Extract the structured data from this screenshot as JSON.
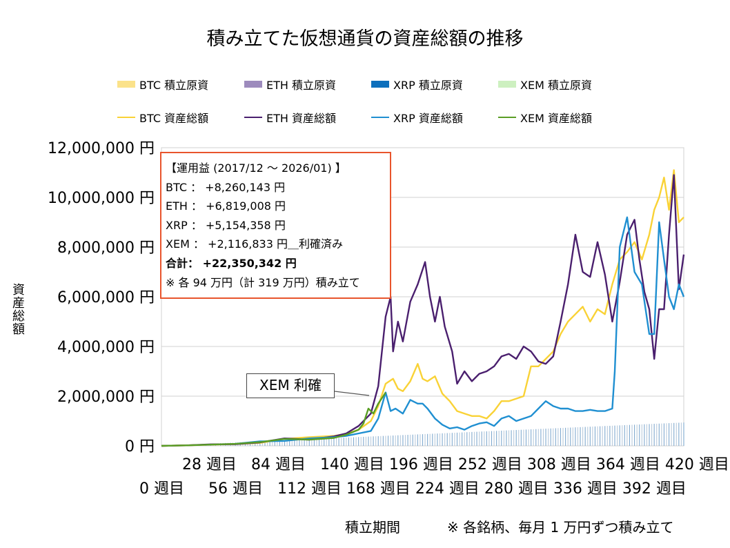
{
  "title": "積み立てた仮想通貨の資産総額の推移",
  "legend": {
    "row1": [
      {
        "label": "BTC  積立原資",
        "color": "#fbe28a"
      },
      {
        "label": "ETH  積立原資",
        "color": "#9d8bbd"
      },
      {
        "label": "XRP  積立原資",
        "color": "#0d6fbc"
      },
      {
        "label": "XEM  積立原資",
        "color": "#cdf0c0"
      }
    ],
    "row2": [
      {
        "label": "BTC  資産総額",
        "color": "#f9d236"
      },
      {
        "label": "ETH  資産総額",
        "color": "#4a1f6e"
      },
      {
        "label": "XRP  資産総額",
        "color": "#1f8fd1"
      },
      {
        "label": "XEM  資産総額",
        "color": "#5a9e25"
      }
    ]
  },
  "info_box": {
    "header": "【運用益 (2017/12 ～ 2026/01) 】",
    "btc": "BTC ： +8,260,143 円",
    "eth": "ETH ： +6,819,008 円",
    "xrp": "XRP ： +5,154,358 円",
    "xem": "XEM ： +2,116,833 円＿利確済み",
    "total": "合計： +22,350,342 円",
    "note": "※ 各 94 万円（計 319 万円）積み立て"
  },
  "callout": "XEM 利確",
  "axis": {
    "y_label": "資産総額",
    "x_label": "積立期間",
    "footnote": "※ 各銘柄、毎月 1 万円ずつ積み立て"
  },
  "chart_data": {
    "type": "line",
    "xlabel": "積立期間",
    "ylabel": "資産総額",
    "xlim": [
      0,
      424
    ],
    "ylim": [
      0,
      12000000
    ],
    "y_ticks": [
      {
        "value": 0,
        "label": "0 円"
      },
      {
        "value": 2000000,
        "label": "2,000,000 円"
      },
      {
        "value": 4000000,
        "label": "4,000,000 円"
      },
      {
        "value": 6000000,
        "label": "6,000,000 円"
      },
      {
        "value": 8000000,
        "label": "8,000,000 円"
      },
      {
        "value": 10000000,
        "label": "10,000,000 円"
      },
      {
        "value": 12000000,
        "label": "12,000,000 円"
      }
    ],
    "x_ticks_top": [
      {
        "value": 28,
        "label": "28 週目"
      },
      {
        "value": 84,
        "label": "84 週目"
      },
      {
        "value": 140,
        "label": "140 週目"
      },
      {
        "value": 196,
        "label": "196 週目"
      },
      {
        "value": 252,
        "label": "252 週目"
      },
      {
        "value": 308,
        "label": "308 週目"
      },
      {
        "value": 364,
        "label": "364 週目"
      },
      {
        "value": 420,
        "label": "420 週目"
      }
    ],
    "x_ticks_bottom": [
      {
        "value": 0,
        "label": "0 週目"
      },
      {
        "value": 56,
        "label": "56 週目"
      },
      {
        "value": 112,
        "label": "112 週目"
      },
      {
        "value": 168,
        "label": "168 週目"
      },
      {
        "value": 224,
        "label": "224 週目"
      },
      {
        "value": 280,
        "label": "280 週目"
      },
      {
        "value": 336,
        "label": "336 週目"
      },
      {
        "value": 392,
        "label": "392 週目"
      }
    ],
    "principal": {
      "name": "積立原資 (各銘柄)",
      "x": [
        0,
        424
      ],
      "y": [
        0,
        940000
      ]
    },
    "series": [
      {
        "name": "BTC 資産総額",
        "color": "#f9d236",
        "x": [
          0,
          20,
          40,
          60,
          80,
          100,
          120,
          140,
          150,
          160,
          170,
          176,
          182,
          188,
          192,
          196,
          202,
          208,
          212,
          216,
          222,
          228,
          234,
          240,
          246,
          252,
          258,
          264,
          270,
          276,
          282,
          288,
          294,
          300,
          306,
          312,
          318,
          324,
          330,
          336,
          342,
          348,
          354,
          360,
          366,
          372,
          378,
          384,
          390,
          396,
          400,
          404,
          408,
          412,
          416,
          420,
          424
        ],
        "y": [
          0,
          20000,
          50000,
          70000,
          120000,
          280000,
          350000,
          400000,
          480000,
          650000,
          1000000,
          1600000,
          2500000,
          2700000,
          2300000,
          2200000,
          2600000,
          3300000,
          2700000,
          2600000,
          2800000,
          2100000,
          1800000,
          1400000,
          1300000,
          1200000,
          1200000,
          1100000,
          1400000,
          1800000,
          1800000,
          1900000,
          2000000,
          3200000,
          3200000,
          3500000,
          3800000,
          4500000,
          5000000,
          5300000,
          5600000,
          5000000,
          5500000,
          5300000,
          6500000,
          7500000,
          7800000,
          8200000,
          7500000,
          8500000,
          9500000,
          10000000,
          10800000,
          9500000,
          11100000,
          9000000,
          9200000
        ]
      },
      {
        "name": "ETH 資産総額",
        "color": "#4a1f6e",
        "x": [
          0,
          20,
          40,
          60,
          80,
          100,
          120,
          140,
          150,
          160,
          170,
          176,
          182,
          186,
          188,
          192,
          196,
          202,
          208,
          214,
          218,
          222,
          226,
          230,
          236,
          240,
          246,
          252,
          258,
          264,
          270,
          276,
          282,
          288,
          294,
          300,
          306,
          312,
          318,
          324,
          330,
          336,
          342,
          348,
          354,
          360,
          366,
          372,
          378,
          384,
          388,
          392,
          396,
          400,
          404,
          408,
          412,
          416,
          420,
          424
        ],
        "y": [
          0,
          20000,
          60000,
          70000,
          140000,
          300000,
          250000,
          380000,
          500000,
          800000,
          1300000,
          2400000,
          5200000,
          6000000,
          3800000,
          5000000,
          4200000,
          5800000,
          6500000,
          7400000,
          6000000,
          5000000,
          6000000,
          4800000,
          3800000,
          2500000,
          3000000,
          2600000,
          2900000,
          3000000,
          3200000,
          3600000,
          3700000,
          3500000,
          4000000,
          3800000,
          3400000,
          3300000,
          3600000,
          5000000,
          6500000,
          8500000,
          7000000,
          6800000,
          8200000,
          6900000,
          5000000,
          6600000,
          8500000,
          9100000,
          7500000,
          6200000,
          5500000,
          3500000,
          5500000,
          5500000,
          8500000,
          10900000,
          6300000,
          7700000
        ]
      },
      {
        "name": "XRP 資産総額",
        "color": "#1f8fd1",
        "x": [
          60,
          80,
          100,
          120,
          140,
          150,
          160,
          170,
          176,
          182,
          186,
          190,
          196,
          202,
          208,
          212,
          216,
          222,
          228,
          234,
          240,
          246,
          252,
          258,
          264,
          270,
          276,
          282,
          288,
          294,
          300,
          306,
          312,
          318,
          324,
          330,
          336,
          342,
          348,
          354,
          360,
          366,
          368,
          372,
          378,
          384,
          390,
          396,
          400,
          404,
          408,
          412,
          416,
          420,
          424
        ],
        "y": [
          80000,
          180000,
          200000,
          300000,
          350000,
          400000,
          500000,
          600000,
          1100000,
          2150000,
          1400000,
          1500000,
          1300000,
          1850000,
          1700000,
          1700000,
          1500000,
          1100000,
          850000,
          700000,
          750000,
          650000,
          800000,
          900000,
          950000,
          800000,
          1100000,
          1200000,
          1000000,
          1100000,
          1200000,
          1500000,
          1800000,
          1600000,
          1500000,
          1500000,
          1400000,
          1400000,
          1450000,
          1400000,
          1400000,
          1500000,
          3000000,
          8000000,
          9200000,
          7000000,
          6500000,
          4500000,
          4500000,
          9000000,
          7500000,
          6000000,
          5500000,
          6500000,
          6000000
        ]
      },
      {
        "name": "XEM 資産総額",
        "color": "#5a9e25",
        "x": [
          0,
          20,
          40,
          60,
          80,
          100,
          120,
          140,
          150,
          160,
          164,
          168,
          172,
          176,
          180,
          182
        ],
        "y": [
          0,
          20000,
          50000,
          80000,
          150000,
          280000,
          250000,
          320000,
          450000,
          650000,
          900000,
          1500000,
          1300000,
          1700000,
          2000000,
          2150000
        ]
      }
    ]
  }
}
